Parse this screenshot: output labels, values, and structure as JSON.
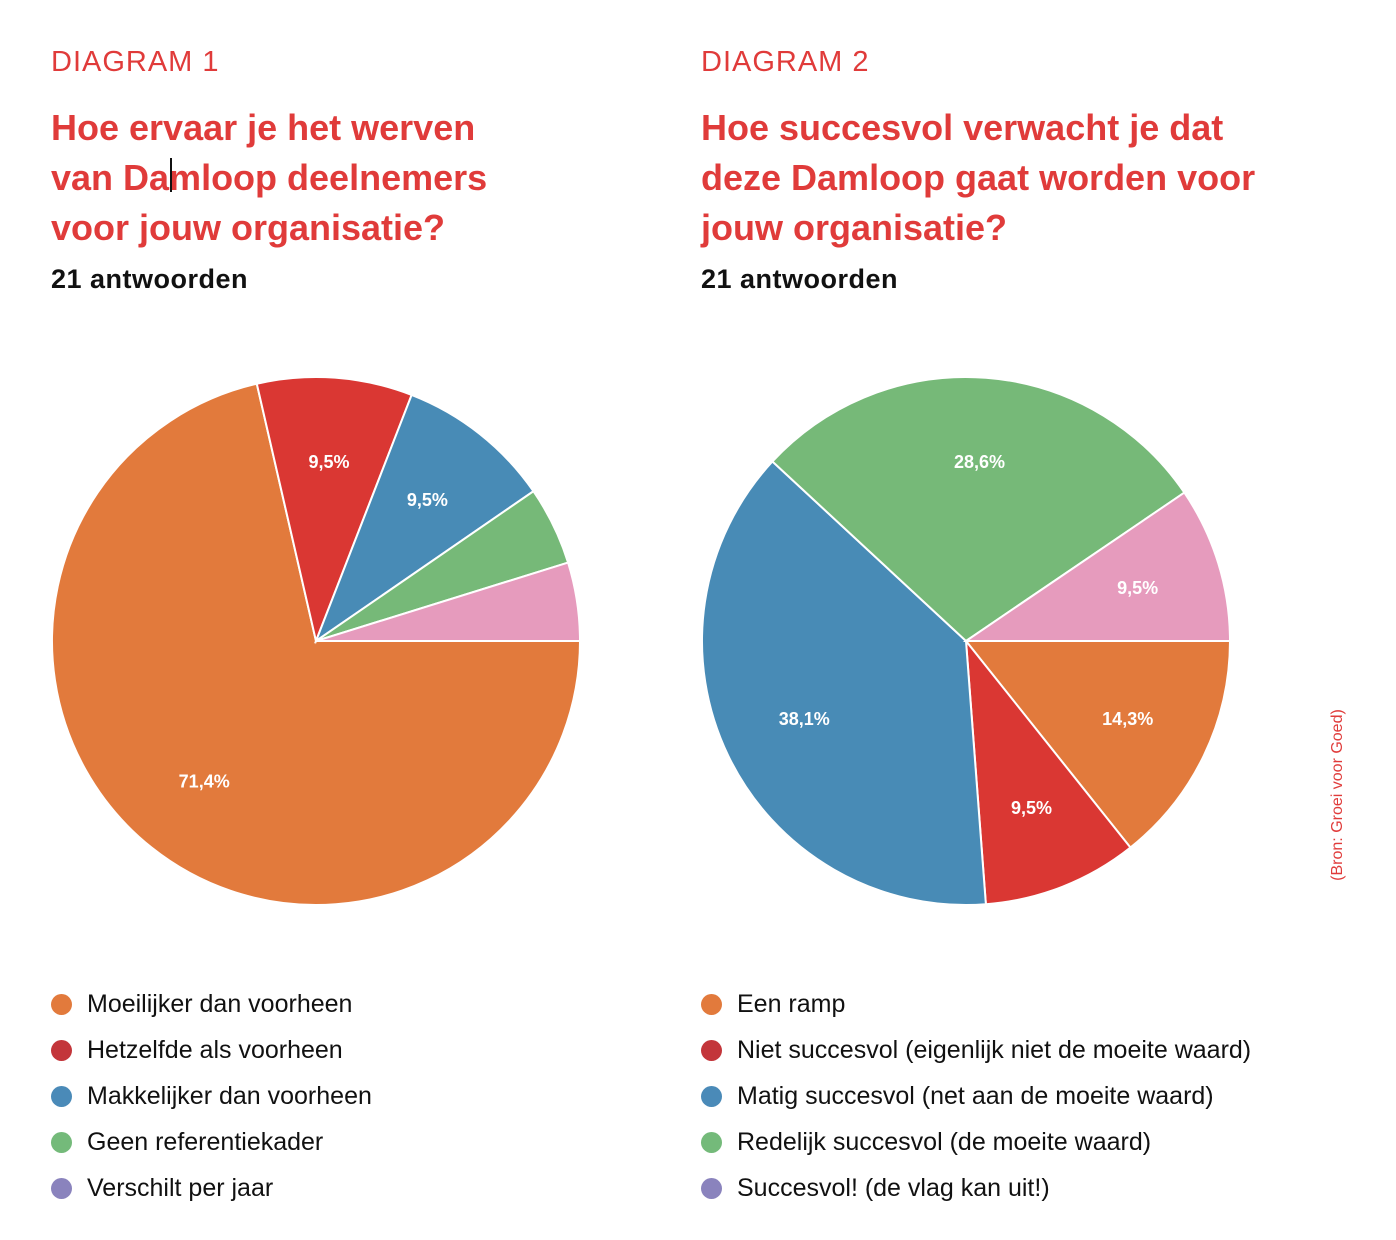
{
  "source_note": "(Bron: Groei voor Goed)",
  "chart_data": [
    {
      "type": "pie",
      "kicker": "DIAGRAM 1",
      "title_lines": [
        "Hoe ervaar je het werven",
        "van Damloop deelnemers",
        "voor jouw organisatie?"
      ],
      "subtitle": "21 antwoorden",
      "start": "3 o'clock, clockwise",
      "slices": [
        {
          "label": "Moeilijker dan voorheen",
          "value": 71.4,
          "data_label": "71,4%",
          "color": "#E27A3C",
          "legend_color": "#E27A3C"
        },
        {
          "label": "Hetzelfde als voorheen",
          "value": 9.5,
          "data_label": "9,5%",
          "color": "#DA3733",
          "legend_color": "#C3353A"
        },
        {
          "label": "Makkelijker dan voorheen",
          "value": 9.5,
          "data_label": "9,5%",
          "color": "#488BB6",
          "legend_color": "#4A8AB8"
        },
        {
          "label": "Geen referentiekader",
          "value": 4.8,
          "data_label": "",
          "color": "#76B978",
          "legend_color": "#74BA7A"
        },
        {
          "label": "Verschilt per jaar",
          "value": 4.8,
          "data_label": "",
          "color": "#E69BBD",
          "legend_color": "#8A83BD"
        }
      ],
      "legend_position": "bottom"
    },
    {
      "type": "pie",
      "kicker": "DIAGRAM 2",
      "title_lines": [
        "Hoe succesvol verwacht je dat",
        "deze Damloop gaat worden voor",
        "jouw organisatie?"
      ],
      "subtitle": "21 antwoorden",
      "start": "3 o'clock, clockwise",
      "slices": [
        {
          "label": "Een ramp",
          "value": 14.3,
          "data_label": "14,3%",
          "color": "#E27A3C",
          "legend_color": "#E27A3C"
        },
        {
          "label": "Niet succesvol (eigenlijk niet de moeite waard)",
          "value": 9.5,
          "data_label": "9,5%",
          "color": "#DA3733",
          "legend_color": "#C3353A"
        },
        {
          "label": "Matig succesvol (net aan de moeite waard)",
          "value": 38.1,
          "data_label": "38,1%",
          "color": "#488BB6",
          "legend_color": "#4A8AB8"
        },
        {
          "label": "Redelijk succesvol (de moeite waard)",
          "value": 28.6,
          "data_label": "28,6%",
          "color": "#76B978",
          "legend_color": "#74BA7A"
        },
        {
          "label": "Succesvol! (de vlag kan uit!)",
          "value": 9.5,
          "data_label": "9,5%",
          "color": "#E69BBD",
          "legend_color": "#8A83BD"
        }
      ],
      "legend_position": "bottom"
    }
  ]
}
